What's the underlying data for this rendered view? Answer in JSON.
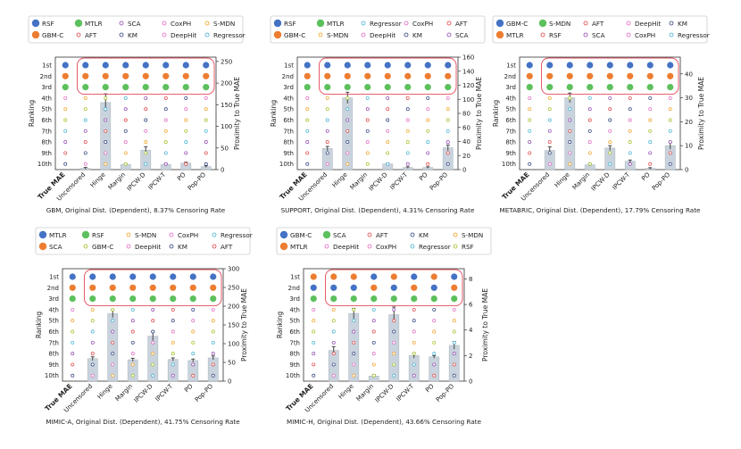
{
  "colors": {
    "blue": "#4472c4",
    "orange": "#ed7d31",
    "green": "#5cc05c",
    "purple": "#8e44ad",
    "red": "#e04040",
    "navy": "#2c3e7a",
    "pink": "#e066c0",
    "gold": "#f0a020",
    "lime": "#a0c020",
    "cyan": "#40b0d0",
    "bar": "#c9d3dd",
    "highlight": "#e24a5a"
  },
  "chart_data": [
    {
      "type": "bar",
      "title": "GBM, Original Dist. (Dependent), 8.37% Censoring Rate",
      "ylabel": "Ranking",
      "ylabel2": "Proximity to True MAE",
      "ranks": [
        "1st",
        "2nd",
        "3rd",
        "4th",
        "5th",
        "6th",
        "7th",
        "8th",
        "9th",
        "10th"
      ],
      "categories": [
        "True MAE",
        "Uncensored",
        "Hinge",
        "Margin",
        "IPCW-D",
        "IPCW-T",
        "PO",
        "Pop-PO"
      ],
      "ylim2": [
        0,
        260
      ],
      "yticks2": [
        "0",
        "50",
        "100",
        "150",
        "200",
        "250"
      ],
      "values": [
        null,
        3,
        155,
        12,
        45,
        12,
        15,
        7
      ],
      "errors": [
        null,
        2,
        20,
        2,
        8,
        2,
        2,
        2
      ],
      "legend": [
        {
          "label": "RSF",
          "color": "blue",
          "filled": true
        },
        {
          "label": "MTLR",
          "color": "green",
          "filled": true
        },
        {
          "label": "SCA",
          "color": "purple",
          "filled": false
        },
        {
          "label": "CoxPH",
          "color": "pink",
          "filled": false
        },
        {
          "label": "S-MDN",
          "color": "gold",
          "filled": false
        },
        {
          "label": "GBM-C",
          "color": "orange",
          "filled": true
        },
        {
          "label": "AFT",
          "color": "red",
          "filled": false
        },
        {
          "label": "KM",
          "color": "navy",
          "filled": false
        },
        {
          "label": "DeepHit",
          "color": "pink",
          "filled": false
        },
        {
          "label": "Regressor",
          "color": "cyan",
          "filled": false
        }
      ],
      "first_rows": [
        "blue",
        "orange",
        "green"
      ]
    },
    {
      "type": "bar",
      "title": "SUPPORT, Original Dist. (Dependent), 4.31% Censoring Rate",
      "ylabel": "Ranking",
      "ylabel2": "Proximity to True MAE",
      "ranks": [
        "1st",
        "2nd",
        "3rd",
        "4th",
        "5th",
        "6th",
        "7th",
        "8th",
        "9th",
        "10th"
      ],
      "categories": [
        "True MAE",
        "Uncensored",
        "Hinge",
        "Margin",
        "IPCW-D",
        "IPCW-T",
        "PO",
        "Pop-PO"
      ],
      "ylim2": [
        0,
        160
      ],
      "yticks2": [
        "0",
        "20",
        "40",
        "60",
        "80",
        "100",
        "120",
        "140",
        "160"
      ],
      "values": [
        null,
        30,
        102,
        0,
        8,
        3,
        3,
        31
      ],
      "errors": [
        null,
        3,
        8,
        0,
        1,
        1,
        1,
        4
      ],
      "legend": [
        {
          "label": "RSF",
          "color": "blue",
          "filled": true
        },
        {
          "label": "MTLR",
          "color": "green",
          "filled": true
        },
        {
          "label": "Regressor",
          "color": "cyan",
          "filled": false
        },
        {
          "label": "CoxPH",
          "color": "pink",
          "filled": false
        },
        {
          "label": "AFT",
          "color": "red",
          "filled": false
        },
        {
          "label": "GBM-C",
          "color": "orange",
          "filled": true
        },
        {
          "label": "S-MDN",
          "color": "gold",
          "filled": false
        },
        {
          "label": "DeepHit",
          "color": "pink",
          "filled": false
        },
        {
          "label": "KM",
          "color": "navy",
          "filled": false
        },
        {
          "label": "SCA",
          "color": "purple",
          "filled": false
        }
      ],
      "first_rows": [
        "blue",
        "orange",
        "green"
      ]
    },
    {
      "type": "bar",
      "title": "METABRIC, Original Dist. (Dependent), 17.79% Censoring Rate",
      "ylabel": "Ranking",
      "ylabel2": "Proximity to True MAE",
      "ranks": [
        "1st",
        "2nd",
        "3rd",
        "4th",
        "5th",
        "6th",
        "7th",
        "8th",
        "9th",
        "10th"
      ],
      "categories": [
        "True MAE",
        "Uncensored",
        "Hinge",
        "Margin",
        "IPCW-D",
        "IPCW-T",
        "PO",
        "Pop-PO"
      ],
      "ylim2": [
        0,
        47
      ],
      "yticks2": [
        "0",
        "10",
        "20",
        "30",
        "40"
      ],
      "values": [
        null,
        8,
        30,
        2,
        9,
        3.5,
        0.5,
        10
      ],
      "errors": [
        null,
        1.5,
        2,
        0.5,
        1,
        0.5,
        0.3,
        1.5
      ],
      "legend": [
        {
          "label": "GBM-C",
          "color": "blue",
          "filled": true
        },
        {
          "label": "S-MDN",
          "color": "green",
          "filled": true
        },
        {
          "label": "AFT",
          "color": "red",
          "filled": false
        },
        {
          "label": "DeepHit",
          "color": "pink",
          "filled": false
        },
        {
          "label": "KM",
          "color": "navy",
          "filled": false
        },
        {
          "label": "MTLR",
          "color": "orange",
          "filled": true
        },
        {
          "label": "RSF",
          "color": "red",
          "filled": false
        },
        {
          "label": "SCA",
          "color": "purple",
          "filled": false
        },
        {
          "label": "CoxPH",
          "color": "pink",
          "filled": false
        },
        {
          "label": "Regressor",
          "color": "cyan",
          "filled": false
        }
      ],
      "first_rows": [
        "blue",
        "orange",
        "green"
      ]
    },
    {
      "type": "bar",
      "title": "MIMIC-A, Original Dist. (Dependent), 41.75% Censoring Rate",
      "ylabel": "Ranking",
      "ylabel2": "Proximity to True MAE",
      "ranks": [
        "1st",
        "2nd",
        "3rd",
        "4th",
        "5th",
        "6th",
        "7th",
        "8th",
        "9th",
        "10th"
      ],
      "categories": [
        "True MAE",
        "Uncensored",
        "Hinge",
        "Margin",
        "IPCW-D",
        "IPCW-T",
        "PO",
        "Pop-PO"
      ],
      "ylim2": [
        0,
        300
      ],
      "yticks2": [
        "0",
        "50",
        "100",
        "150",
        "200",
        "250",
        "300"
      ],
      "values": [
        null,
        60,
        180,
        57,
        120,
        58,
        55,
        62
      ],
      "errors": [
        null,
        5,
        10,
        4,
        12,
        4,
        4,
        5
      ],
      "legend": [
        {
          "label": "MTLR",
          "color": "blue",
          "filled": true
        },
        {
          "label": "RSF",
          "color": "green",
          "filled": true
        },
        {
          "label": "S-MDN",
          "color": "gold",
          "filled": false
        },
        {
          "label": "CoxPH",
          "color": "pink",
          "filled": false
        },
        {
          "label": "Regressor",
          "color": "cyan",
          "filled": false
        },
        {
          "label": "SCA",
          "color": "orange",
          "filled": true
        },
        {
          "label": "GBM-C",
          "color": "lime",
          "filled": false
        },
        {
          "label": "DeepHit",
          "color": "pink",
          "filled": false
        },
        {
          "label": "KM",
          "color": "navy",
          "filled": false
        },
        {
          "label": "AFT",
          "color": "red",
          "filled": false
        }
      ],
      "first_rows": [
        "blue",
        "orange",
        "green"
      ]
    },
    {
      "type": "bar",
      "title": "MIMIC-H, Original Dist. (Dependent), 43.66% Censoring Rate",
      "ylabel": "Ranking",
      "ylabel2": "Proximity to True MAE",
      "ranks": [
        "1st",
        "2nd",
        "3rd",
        "4th",
        "5th",
        "6th",
        "7th",
        "8th",
        "9th",
        "10th"
      ],
      "categories": [
        "True MAE",
        "Uncensored",
        "Hinge",
        "Margin",
        "IPCW-D",
        "IPCW-T",
        "PO",
        "Pop-PO"
      ],
      "ylim2": [
        0,
        8.8
      ],
      "yticks2": [
        "0",
        "2",
        "4",
        "6",
        "8"
      ],
      "values": [
        null,
        2.4,
        5.3,
        0.4,
        5.2,
        2.0,
        1.9,
        2.8
      ],
      "errors": [
        null,
        0.3,
        0.4,
        0.1,
        0.6,
        0.2,
        0.1,
        0.3
      ],
      "legend": [
        {
          "label": "GBM-C",
          "color": "blue",
          "filled": true
        },
        {
          "label": "SCA",
          "color": "green",
          "filled": true
        },
        {
          "label": "AFT",
          "color": "red",
          "filled": false
        },
        {
          "label": "KM",
          "color": "navy",
          "filled": false
        },
        {
          "label": "S-MDN",
          "color": "gold",
          "filled": false
        },
        {
          "label": "MTLR",
          "color": "orange",
          "filled": true
        },
        {
          "label": "DeepHit",
          "color": "pink",
          "filled": false
        },
        {
          "label": "CoxPH",
          "color": "pink",
          "filled": false
        },
        {
          "label": "Regressor",
          "color": "cyan",
          "filled": false
        },
        {
          "label": "RSF",
          "color": "lime",
          "filled": false
        }
      ],
      "first_rows": [
        "orange",
        "blue",
        "green"
      ]
    }
  ]
}
